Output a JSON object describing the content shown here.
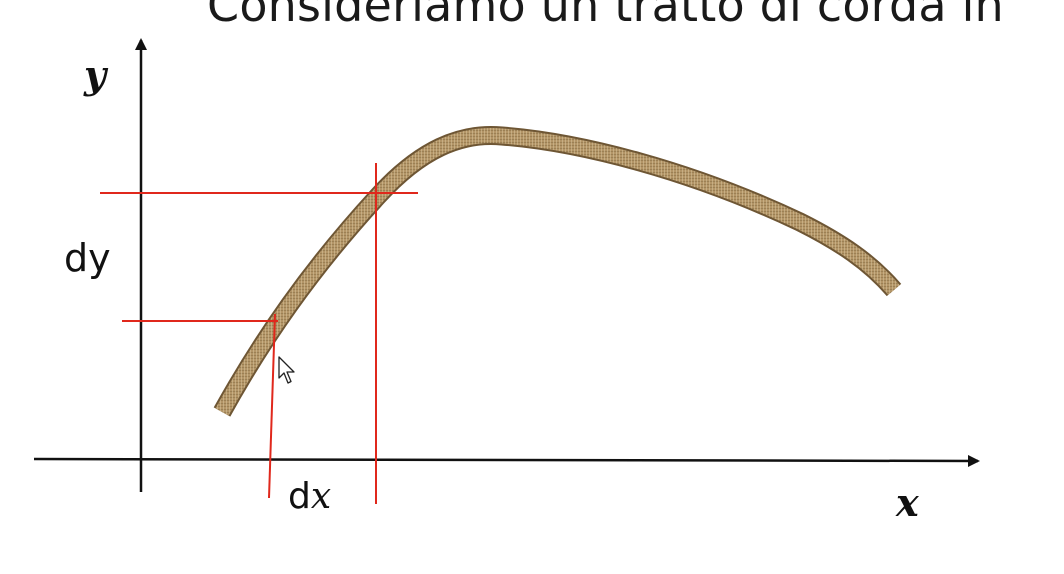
{
  "slide": {
    "title": "Consideriamo un tratto di corda in"
  },
  "diagram": {
    "y_axis_label": "y",
    "x_axis_label": "x",
    "dy_label": "dy",
    "dx_label_d": "d",
    "dx_label_x": "x",
    "colors": {
      "axes": "#111111",
      "guides": "#e0281c",
      "rope_base": "#b39567",
      "rope_light": "#d4bd92",
      "rope_dark": "#6e5634"
    },
    "icons": {
      "cursor": "mouse-pointer-icon"
    }
  }
}
